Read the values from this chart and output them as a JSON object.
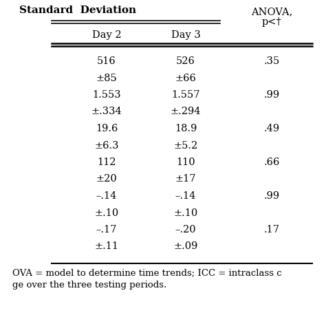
{
  "title_line1": "Standard  Deviation",
  "col_headers": [
    "Day 2",
    "Day 3",
    "ANOVA,\np<†"
  ],
  "rows": [
    [
      "516",
      "526",
      ".35"
    ],
    [
      "±85",
      "±66",
      ""
    ],
    [
      "1.553",
      "1.557",
      ".99"
    ],
    [
      "±.334",
      "±.294",
      ""
    ],
    [
      "19.6",
      "18.9",
      ".49"
    ],
    [
      "±6.3",
      "±5.2",
      ""
    ],
    [
      "112",
      "110",
      ".66"
    ],
    [
      "±20",
      "±17",
      ""
    ],
    [
      "–.14",
      "–.14",
      ".99"
    ],
    [
      "±.10",
      "±.10",
      ""
    ],
    [
      "–.17",
      "–.20",
      ".17"
    ],
    [
      "±.11",
      "±.09",
      ""
    ]
  ],
  "footnote1": "OVA = model to determine time trends; ICC = intraclass c",
  "footnote2": "ge over the three testing periods.",
  "bg_color": "#ffffff",
  "text_color": "#000000",
  "font_size": 10.5,
  "bold_font_size": 11
}
